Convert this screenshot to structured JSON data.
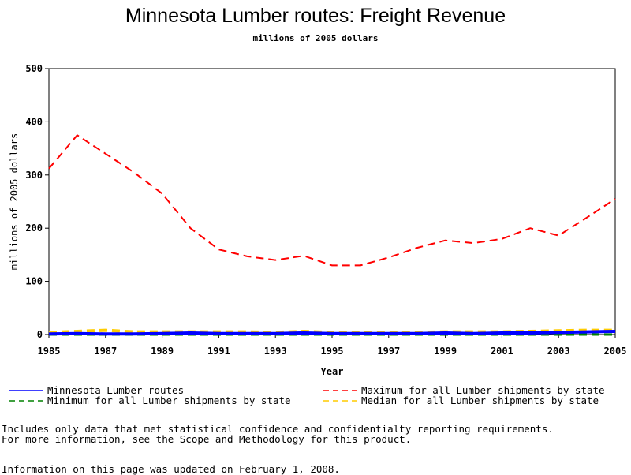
{
  "chart_data": {
    "type": "line",
    "title": "Minnesota Lumber routes: Freight Revenue",
    "subtitle": "millions of 2005 dollars",
    "xlabel": "Year",
    "ylabel": "millions of 2005 dollars",
    "xlim": [
      1985,
      2005
    ],
    "ylim": [
      0,
      500
    ],
    "xticks": [
      "1985",
      "1987",
      "1989",
      "1991",
      "1993",
      "1995",
      "1997",
      "1999",
      "2001",
      "2003",
      "2005"
    ],
    "yticks": [
      "0",
      "100",
      "200",
      "300",
      "400",
      "500"
    ],
    "x": [
      1985,
      1986,
      1987,
      1988,
      1989,
      1990,
      1991,
      1992,
      1993,
      1994,
      1995,
      1996,
      1997,
      1998,
      1999,
      2000,
      2001,
      2002,
      2003,
      2004,
      2005
    ],
    "series": [
      {
        "name": "Minnesota Lumber routes",
        "color": "#0000ff",
        "dash": "solid",
        "values": [
          1,
          2,
          1,
          1,
          2,
          3,
          2,
          2,
          2,
          3,
          2,
          2,
          2,
          2,
          3,
          2,
          3,
          3,
          4,
          5,
          6
        ]
      },
      {
        "name": "Maximum for all Lumber shipments by state",
        "color": "#ff0000",
        "dash": "dashed",
        "values": [
          312,
          375,
          340,
          305,
          265,
          200,
          160,
          147,
          140,
          148,
          130,
          130,
          145,
          163,
          177,
          172,
          180,
          200,
          186,
          220,
          255
        ]
      },
      {
        "name": "Minimum for all Lumber shipments by state",
        "color": "#008000",
        "dash": "dashed",
        "values": [
          0,
          0,
          0,
          0,
          0,
          0,
          0,
          0,
          0,
          0,
          0,
          0,
          0,
          0,
          0,
          0,
          0,
          0,
          0,
          0,
          0
        ]
      },
      {
        "name": "Median for all Lumber shipments by state",
        "color": "#ffcc00",
        "dash": "dashed",
        "values": [
          4,
          6,
          8,
          5,
          5,
          5,
          5,
          5,
          4,
          6,
          4,
          4,
          4,
          4,
          5,
          5,
          5,
          6,
          7,
          8,
          8
        ]
      }
    ],
    "grid": false,
    "legend_position": "bottom"
  },
  "notes": {
    "line1": "Includes only data that met statistical confidence and confidentialty reporting requirements.",
    "line2": "For more information, see the Scope and Methodology for this product.",
    "line3": "Information on this page was updated on February 1, 2008."
  }
}
